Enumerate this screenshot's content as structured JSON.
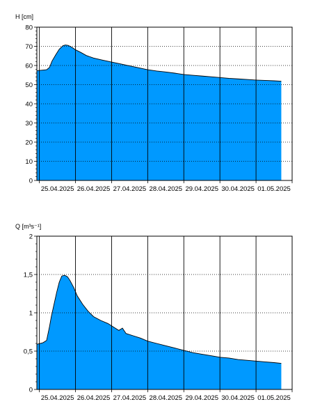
{
  "chart_data": [
    {
      "type": "area",
      "ylabel": "H [cm]",
      "ylim": [
        0,
        80
      ],
      "yticks": [
        0,
        10,
        20,
        30,
        40,
        50,
        60,
        70,
        80
      ],
      "x_dates": [
        "25.04.2025",
        "26.04.2025",
        "27.04.2025",
        "28.04.2025",
        "29.04.2025",
        "30.04.2025",
        "01.05.2025"
      ],
      "xlim_days": [
        24.93,
        32.0
      ],
      "grid": true,
      "fill_color": "#0099ff",
      "x_day": [
        24.94,
        25.2,
        25.28,
        25.35,
        25.45,
        25.55,
        25.65,
        25.72,
        25.8,
        25.9,
        26.0,
        26.15,
        26.3,
        26.5,
        26.75,
        27.0,
        27.15,
        27.3,
        27.5,
        27.75,
        28.0,
        28.25,
        28.5,
        28.75,
        29.0,
        29.25,
        29.5,
        29.75,
        30.0,
        30.25,
        30.5,
        30.75,
        31.0,
        31.25,
        31.5,
        31.7
      ],
      "values": [
        57.3,
        57.8,
        59.0,
        62.3,
        65.5,
        68.5,
        70.3,
        70.7,
        70.5,
        69.5,
        68.2,
        66.8,
        65.2,
        63.9,
        62.8,
        61.8,
        61.2,
        60.6,
        59.8,
        58.8,
        57.8,
        57.1,
        56.6,
        56.0,
        55.3,
        54.9,
        54.5,
        54.1,
        53.7,
        53.3,
        53.0,
        52.7,
        52.4,
        52.2,
        52.0,
        51.8
      ]
    },
    {
      "type": "area",
      "ylabel": "Q [m³s⁻¹]",
      "ylim": [
        0,
        2
      ],
      "yticks": [
        0,
        0.5,
        1,
        1.5,
        2
      ],
      "ytick_labels": [
        "0",
        "0,5",
        "1",
        "1,5",
        "2"
      ],
      "x_dates": [
        "25.04.2025",
        "26.04.2025",
        "27.04.2025",
        "28.04.2025",
        "29.04.2025",
        "30.04.2025",
        "01.05.2025"
      ],
      "xlim_days": [
        24.93,
        32.0
      ],
      "grid": true,
      "fill_color": "#0099ff",
      "x_day": [
        24.94,
        25.1,
        25.2,
        25.28,
        25.33,
        25.4,
        25.48,
        25.55,
        25.62,
        25.7,
        25.78,
        25.85,
        25.95,
        26.05,
        26.2,
        26.35,
        26.5,
        26.7,
        26.9,
        27.1,
        27.2,
        27.3,
        27.4,
        27.6,
        27.8,
        28.0,
        28.25,
        28.5,
        28.75,
        29.0,
        29.25,
        29.5,
        29.75,
        30.0,
        30.25,
        30.5,
        30.75,
        31.0,
        31.25,
        31.5,
        31.7
      ],
      "values": [
        0.59,
        0.61,
        0.64,
        0.82,
        0.95,
        1.1,
        1.27,
        1.4,
        1.48,
        1.49,
        1.47,
        1.42,
        1.33,
        1.22,
        1.11,
        1.02,
        0.95,
        0.9,
        0.86,
        0.8,
        0.77,
        0.8,
        0.73,
        0.7,
        0.67,
        0.63,
        0.6,
        0.57,
        0.54,
        0.51,
        0.48,
        0.46,
        0.44,
        0.42,
        0.41,
        0.39,
        0.38,
        0.37,
        0.36,
        0.35,
        0.34
      ]
    }
  ]
}
